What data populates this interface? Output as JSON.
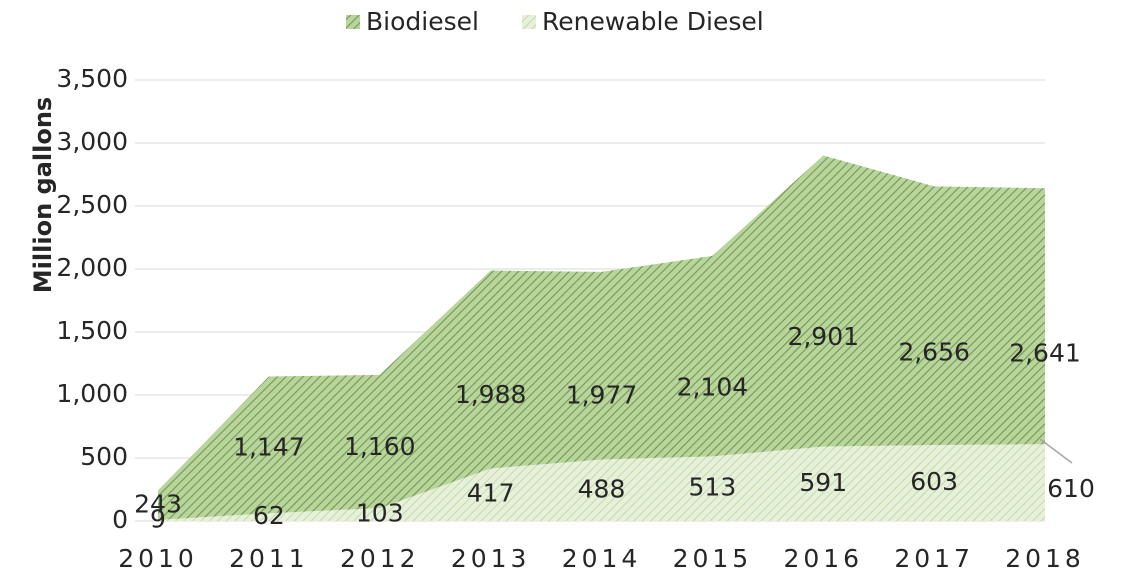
{
  "chart_data": {
    "type": "area",
    "y_label": "Million gallons",
    "categories": [
      "2010",
      "2011",
      "2012",
      "2013",
      "2014",
      "2015",
      "2016",
      "2017",
      "2018"
    ],
    "series": [
      {
        "name": "Biodiesel",
        "color": "#a3c585",
        "values": [
          243,
          1147,
          1160,
          1988,
          1977,
          2104,
          2901,
          2656,
          2641
        ],
        "value_labels": [
          "243",
          "1,147",
          "1,160",
          "1,988",
          "1,977",
          "2,104",
          "2,901",
          "2,656",
          "2,641"
        ]
      },
      {
        "name": "Renewable Diesel",
        "color": "#d9eac8",
        "values": [
          9,
          62,
          103,
          417,
          488,
          513,
          591,
          603,
          610
        ]
      }
    ],
    "ylim": [
      0,
      3500
    ],
    "yticks": [
      0,
      500,
      {
        "value": 1000,
        "label": "1,000"
      },
      {
        "value": 1500,
        "label": "1,500"
      },
      {
        "value": 2000,
        "label": "2,000"
      },
      {
        "value": 2500,
        "label": "2,500"
      },
      {
        "value": 3000,
        "label": "3,000"
      },
      {
        "value": 3500,
        "label": "3,500"
      }
    ],
    "grid": true,
    "legend": "top"
  }
}
